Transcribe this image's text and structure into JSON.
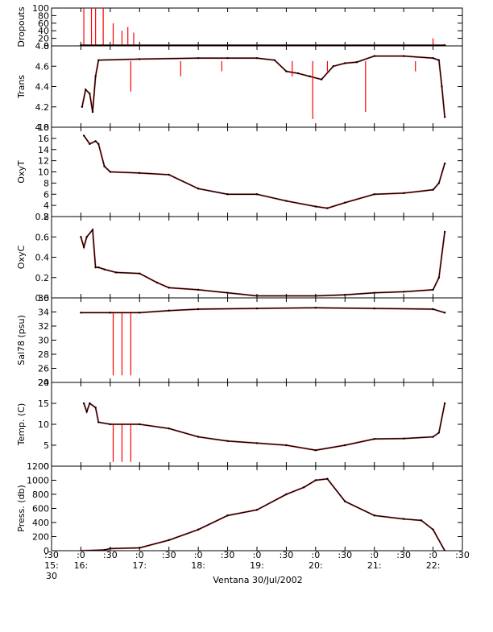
{
  "caption": "Ventana 30/Jul/2002",
  "trace_colors": {
    "raw": "#ff0000",
    "qc": "#000000"
  },
  "time_ticks": [
    {
      "t": -0.5,
      "top": ":30",
      "mid": "15:",
      "bot": "30"
    },
    {
      "t": 0.0,
      "top": ":0",
      "mid": "16:",
      "bot": ""
    },
    {
      "t": 0.5,
      "top": ":30",
      "mid": "",
      "bot": ""
    },
    {
      "t": 1.0,
      "top": ":0",
      "mid": "17:",
      "bot": ""
    },
    {
      "t": 1.5,
      "top": ":30",
      "mid": "",
      "bot": ""
    },
    {
      "t": 2.0,
      "top": ":0",
      "mid": "18:",
      "bot": ""
    },
    {
      "t": 2.5,
      "top": ":30",
      "mid": "",
      "bot": ""
    },
    {
      "t": 3.0,
      "top": ":0",
      "mid": "19:",
      "bot": ""
    },
    {
      "t": 3.5,
      "top": ":30",
      "mid": "",
      "bot": ""
    },
    {
      "t": 4.0,
      "top": ":0",
      "mid": "20:",
      "bot": ""
    },
    {
      "t": 4.5,
      "top": ":30",
      "mid": "",
      "bot": ""
    },
    {
      "t": 5.0,
      "top": ":0",
      "mid": "21:",
      "bot": ""
    },
    {
      "t": 5.5,
      "top": ":30",
      "mid": "",
      "bot": ""
    },
    {
      "t": 6.0,
      "top": ":0",
      "mid": "22:",
      "bot": ""
    },
    {
      "t": 6.5,
      "top": ":30",
      "mid": "",
      "bot": ""
    }
  ],
  "chart_data": [
    {
      "type": "line",
      "ylabel": "Dropouts",
      "ylim": [
        0,
        100
      ],
      "ticks": [
        {
          "v": 0,
          "label": "0"
        },
        {
          "v": 20,
          "label": "20"
        },
        {
          "v": 40,
          "label": "40"
        },
        {
          "v": 60,
          "label": "60"
        },
        {
          "v": 80,
          "label": "80"
        },
        {
          "v": 100,
          "label": "100"
        }
      ],
      "series": [
        {
          "role": "spikes",
          "x": [
            0.05,
            0.18,
            0.25,
            0.38,
            0.55,
            0.7,
            0.8,
            0.9,
            6.0
          ],
          "values": [
            100,
            100,
            100,
            100,
            60,
            40,
            50,
            35,
            20
          ]
        },
        {
          "role": "qc",
          "x": [
            0.0,
            6.2
          ],
          "values": [
            2,
            2
          ]
        }
      ]
    },
    {
      "type": "line",
      "ylabel": "Trans",
      "ylim": [
        4.0,
        4.8
      ],
      "ticks": [
        {
          "v": 4.0,
          "label": "4.0"
        },
        {
          "v": 4.2,
          "label": "4.2"
        },
        {
          "v": 4.4,
          "label": "4.4"
        },
        {
          "v": 4.6,
          "label": "4.6"
        },
        {
          "v": 4.8,
          "label": "4.8"
        }
      ],
      "series": [
        {
          "role": "qc",
          "x": [
            0.02,
            0.08,
            0.15,
            0.2,
            0.25,
            0.3,
            1.0,
            2.0,
            2.5,
            3.0,
            3.3,
            3.5,
            3.7,
            3.9,
            4.1,
            4.3,
            4.5,
            4.7,
            5.0,
            5.5,
            6.0,
            6.1,
            6.15,
            6.2
          ],
          "values": [
            4.2,
            4.37,
            4.33,
            4.15,
            4.5,
            4.66,
            4.67,
            4.68,
            4.68,
            4.68,
            4.66,
            4.55,
            4.53,
            4.5,
            4.47,
            4.6,
            4.63,
            4.64,
            4.7,
            4.7,
            4.68,
            4.66,
            4.4,
            4.1
          ]
        },
        {
          "role": "spikes",
          "x": [
            0.85,
            1.7,
            2.4,
            3.6,
            3.95,
            4.2,
            4.85,
            5.7
          ],
          "values": [
            4.35,
            4.5,
            4.55,
            4.5,
            4.08,
            4.55,
            4.15,
            4.55
          ]
        }
      ]
    },
    {
      "type": "line",
      "ylabel": "OxyT",
      "ylim": [
        2,
        18
      ],
      "ticks": [
        {
          "v": 2,
          "label": "2"
        },
        {
          "v": 4,
          "label": "4"
        },
        {
          "v": 6,
          "label": "6"
        },
        {
          "v": 8,
          "label": "8"
        },
        {
          "v": 10,
          "label": "10"
        },
        {
          "v": 12,
          "label": "12"
        },
        {
          "v": 14,
          "label": "14"
        },
        {
          "v": 16,
          "label": "16"
        },
        {
          "v": 18,
          "label": "18"
        }
      ],
      "series": [
        {
          "role": "qc",
          "x": [
            0.05,
            0.15,
            0.25,
            0.3,
            0.4,
            0.5,
            1.0,
            1.5,
            2.0,
            2.5,
            3.0,
            3.5,
            4.0,
            4.2,
            4.5,
            5.0,
            5.5,
            6.0,
            6.1,
            6.2
          ],
          "values": [
            16.5,
            15.0,
            15.5,
            15.0,
            11.0,
            10.0,
            9.8,
            9.5,
            7.0,
            6.0,
            6.0,
            4.8,
            3.8,
            3.5,
            4.5,
            6.0,
            6.2,
            6.8,
            8.0,
            11.5
          ]
        }
      ]
    },
    {
      "type": "line",
      "ylabel": "OxyC",
      "ylim": [
        0.0,
        0.8
      ],
      "ticks": [
        {
          "v": 0.0,
          "label": "0.0"
        },
        {
          "v": 0.2,
          "label": "0.2"
        },
        {
          "v": 0.4,
          "label": "0.4"
        },
        {
          "v": 0.6,
          "label": "0.6"
        },
        {
          "v": 0.8,
          "label": "0.8"
        }
      ],
      "series": [
        {
          "role": "qc",
          "x": [
            0.0,
            0.05,
            0.1,
            0.2,
            0.25,
            0.3,
            0.4,
            0.6,
            1.0,
            1.3,
            1.5,
            2.0,
            2.5,
            3.0,
            3.5,
            4.0,
            4.5,
            5.0,
            5.5,
            6.0,
            6.1,
            6.2
          ],
          "values": [
            0.6,
            0.5,
            0.6,
            0.67,
            0.3,
            0.3,
            0.28,
            0.25,
            0.24,
            0.15,
            0.1,
            0.08,
            0.05,
            0.02,
            0.02,
            0.02,
            0.03,
            0.05,
            0.06,
            0.08,
            0.2,
            0.65
          ]
        }
      ]
    },
    {
      "type": "line",
      "ylabel": "Sal78 (psu)",
      "ylim": [
        24,
        36
      ],
      "ticks": [
        {
          "v": 24,
          "label": "24"
        },
        {
          "v": 26,
          "label": "26"
        },
        {
          "v": 28,
          "label": "28"
        },
        {
          "v": 30,
          "label": "30"
        },
        {
          "v": 32,
          "label": "32"
        },
        {
          "v": 34,
          "label": "34"
        },
        {
          "v": 36,
          "label": "36"
        }
      ],
      "series": [
        {
          "role": "spikes",
          "x": [
            0.55,
            0.7,
            0.85
          ],
          "values": [
            25,
            25,
            25
          ]
        },
        {
          "role": "qc",
          "x": [
            0.0,
            0.5,
            1.0,
            1.5,
            2.0,
            3.0,
            4.0,
            5.0,
            6.0,
            6.2
          ],
          "values": [
            33.9,
            33.9,
            33.9,
            34.2,
            34.4,
            34.5,
            34.6,
            34.5,
            34.4,
            33.9
          ]
        }
      ]
    },
    {
      "type": "line",
      "ylabel": "Temp. (C)",
      "ylim": [
        0,
        20
      ],
      "ticks": [
        {
          "v": 0,
          "label": "0"
        },
        {
          "v": 5,
          "label": "5"
        },
        {
          "v": 10,
          "label": "10"
        },
        {
          "v": 15,
          "label": "15"
        },
        {
          "v": 20,
          "label": "20"
        }
      ],
      "series": [
        {
          "role": "spikes",
          "x": [
            0.55,
            0.7,
            0.85
          ],
          "values": [
            1,
            1,
            1
          ]
        },
        {
          "role": "qc",
          "x": [
            0.05,
            0.1,
            0.15,
            0.25,
            0.3,
            0.5,
            1.0,
            1.5,
            2.0,
            2.5,
            3.0,
            3.5,
            4.0,
            4.5,
            5.0,
            5.5,
            6.0,
            6.1,
            6.2
          ],
          "values": [
            15.0,
            13.0,
            15.0,
            14.0,
            10.5,
            10.0,
            10.0,
            9.0,
            7.0,
            6.0,
            5.5,
            5.0,
            3.8,
            5.0,
            6.5,
            6.6,
            7.0,
            8.0,
            15.0
          ]
        }
      ]
    },
    {
      "type": "line",
      "ylabel": "Press. (db)",
      "ylim": [
        0,
        1200
      ],
      "ticks": [
        {
          "v": 0,
          "label": "0"
        },
        {
          "v": 200,
          "label": "200"
        },
        {
          "v": 400,
          "label": "400"
        },
        {
          "v": 600,
          "label": "600"
        },
        {
          "v": 800,
          "label": "800"
        },
        {
          "v": 1000,
          "label": "1000"
        },
        {
          "v": 1200,
          "label": "1200"
        }
      ],
      "series": [
        {
          "role": "qc",
          "x": [
            0.0,
            0.4,
            0.5,
            1.0,
            1.5,
            2.0,
            2.5,
            3.0,
            3.5,
            3.8,
            4.0,
            4.2,
            4.5,
            5.0,
            5.5,
            5.8,
            6.0,
            6.2
          ],
          "values": [
            0,
            10,
            30,
            40,
            150,
            300,
            500,
            580,
            800,
            900,
            1000,
            1020,
            700,
            500,
            450,
            430,
            300,
            0
          ]
        }
      ]
    }
  ]
}
